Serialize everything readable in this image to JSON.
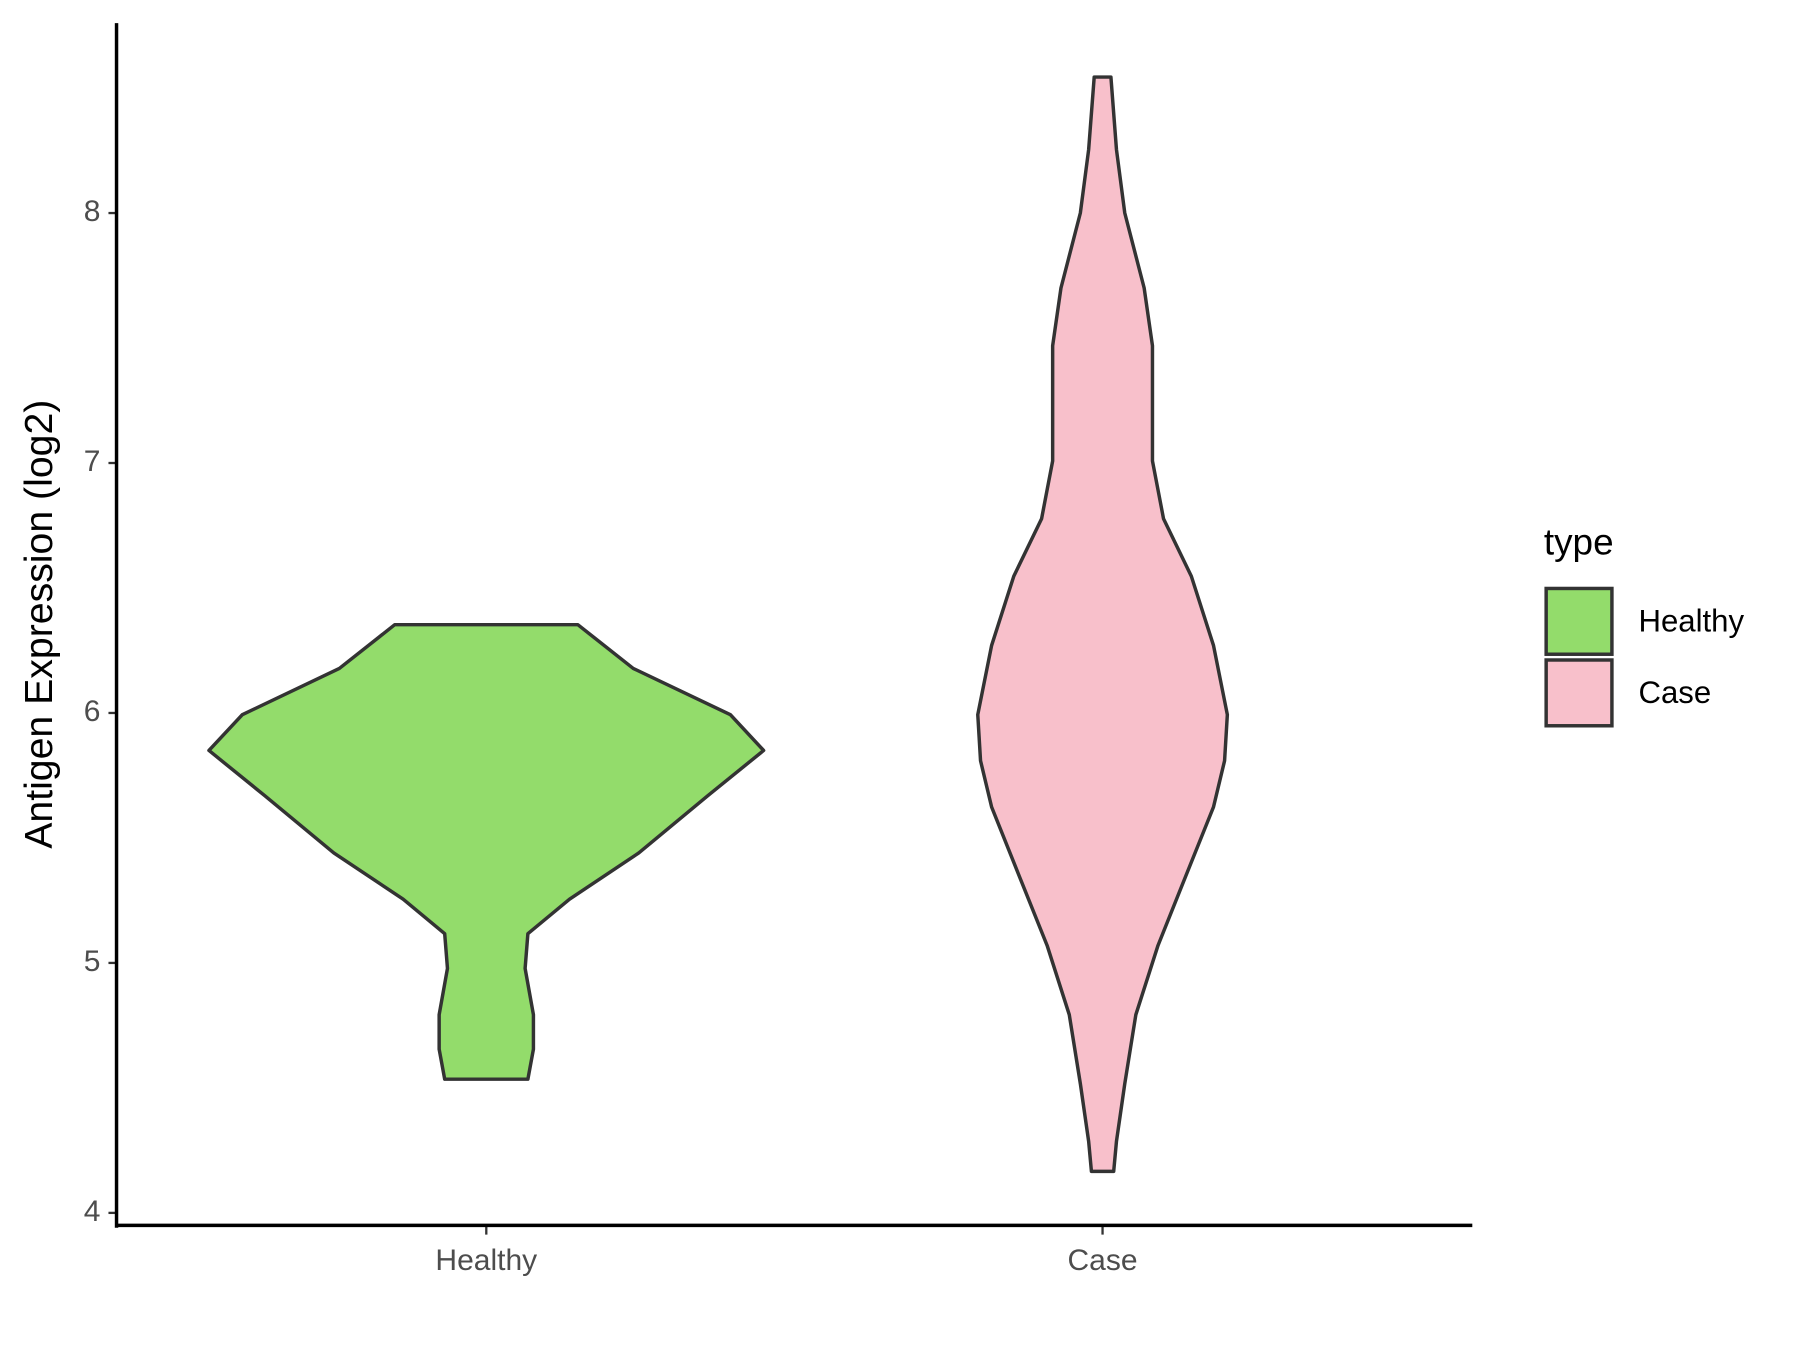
{
  "chart_data": {
    "type": "violin",
    "y_label": "Antigen Expression (log2)",
    "categories": [
      "Healthy",
      "Case"
    ],
    "legend_title": "type",
    "ylim": [
      3.95,
      8.76
    ],
    "yticks": [
      4,
      5,
      6,
      7,
      8
    ],
    "series": [
      {
        "name": "Healthy",
        "color": "#93dc6b",
        "y": [
          6.353,
          6.178,
          5.993,
          5.85,
          5.67,
          5.44,
          5.255,
          5.117,
          4.978,
          4.793,
          4.655,
          4.535
        ],
        "density": [
          0.33,
          0.53,
          0.88,
          1,
          0.8,
          0.55,
          0.3,
          0.15,
          0.14,
          0.17,
          0.17,
          0.15
        ]
      },
      {
        "name": "Case",
        "color": "#f8c0cb",
        "y": [
          8.544,
          8.254,
          8.0,
          7.7,
          7.469,
          7.239,
          7.008,
          6.777,
          6.547,
          6.27,
          5.993,
          5.809,
          5.624,
          5.347,
          5.07,
          4.793,
          4.517,
          4.286,
          4.166
        ],
        "density": [
          0.03,
          0.05,
          0.08,
          0.15,
          0.18,
          0.18,
          0.18,
          0.22,
          0.32,
          0.4,
          0.45,
          0.44,
          0.4,
          0.3,
          0.2,
          0.12,
          0.08,
          0.05,
          0.04
        ]
      }
    ]
  }
}
